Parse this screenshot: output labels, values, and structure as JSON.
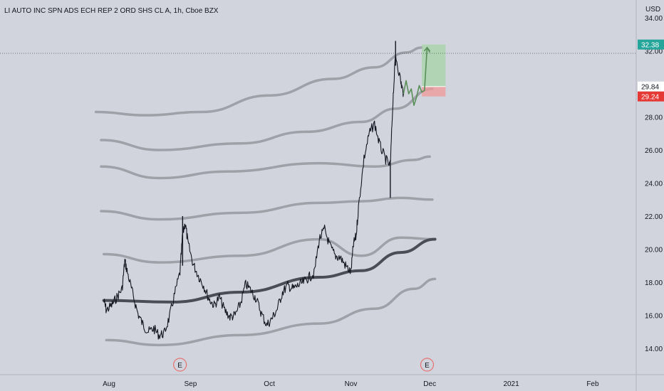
{
  "chart_data": {
    "type": "line",
    "title": "LI AUTO INC SPN ADS ECH REP 2 ORD SHS CL A, 1h, Cboe BZX",
    "currency": "USD",
    "ylim": [
      13.0,
      35.0
    ],
    "y_ticks": [
      "14.00",
      "16.00",
      "18.00",
      "20.00",
      "22.00",
      "24.00",
      "26.00",
      "28.00",
      "30.00",
      "32.00",
      "34.00"
    ],
    "x_ticks": [
      {
        "label": "Aug",
        "date": "2020-08-01"
      },
      {
        "label": "Sep",
        "date": "2020-09-01"
      },
      {
        "label": "Oct",
        "date": "2020-10-01"
      },
      {
        "label": "Nov",
        "date": "2020-11-01"
      },
      {
        "label": "Dec",
        "date": "2020-12-01"
      },
      {
        "label": "2021",
        "date": "2021-01-01"
      },
      {
        "label": "Feb",
        "date": "2021-02-01"
      }
    ],
    "price_labels": [
      {
        "text": "32.38",
        "value": 32.38,
        "color": "#26a69a"
      },
      {
        "text": "29.84",
        "value": 29.84,
        "color": "#ffffff"
      },
      {
        "text": "29.24",
        "value": 29.24,
        "color": "#e53935"
      }
    ],
    "earnings_markers": [
      {
        "label": "E",
        "date": "2020-08-28"
      },
      {
        "label": "E",
        "date": "2020-11-30"
      }
    ],
    "price_series": [
      [
        "2020-07-30",
        16.9
      ],
      [
        "2020-07-31",
        16.3
      ],
      [
        "2020-08-02",
        16.6
      ],
      [
        "2020-08-04",
        17.1
      ],
      [
        "2020-08-06",
        17.6
      ],
      [
        "2020-08-07",
        19.3
      ],
      [
        "2020-08-08",
        18.6
      ],
      [
        "2020-08-10",
        17.3
      ],
      [
        "2020-08-12",
        16.1
      ],
      [
        "2020-08-14",
        15.4
      ],
      [
        "2020-08-16",
        15.0
      ],
      [
        "2020-08-18",
        15.2
      ],
      [
        "2020-08-20",
        14.8
      ],
      [
        "2020-08-22",
        14.9
      ],
      [
        "2020-08-24",
        15.9
      ],
      [
        "2020-08-26",
        17.3
      ],
      [
        "2020-08-28",
        18.6
      ],
      [
        "2020-08-29",
        20.9
      ],
      [
        "2020-08-30",
        21.6
      ],
      [
        "2020-08-31",
        20.4
      ],
      [
        "2020-09-02",
        19.1
      ],
      [
        "2020-09-04",
        18.4
      ],
      [
        "2020-09-06",
        17.8
      ],
      [
        "2020-09-08",
        17.0
      ],
      [
        "2020-09-10",
        16.6
      ],
      [
        "2020-09-12",
        17.1
      ],
      [
        "2020-09-14",
        16.3
      ],
      [
        "2020-09-16",
        15.9
      ],
      [
        "2020-09-18",
        16.0
      ],
      [
        "2020-09-20",
        16.7
      ],
      [
        "2020-09-22",
        17.9
      ],
      [
        "2020-09-24",
        17.5
      ],
      [
        "2020-09-26",
        17.0
      ],
      [
        "2020-09-28",
        16.1
      ],
      [
        "2020-09-30",
        15.4
      ],
      [
        "2020-10-02",
        15.8
      ],
      [
        "2020-10-04",
        16.4
      ],
      [
        "2020-10-06",
        17.4
      ],
      [
        "2020-10-08",
        17.8
      ],
      [
        "2020-10-10",
        17.6
      ],
      [
        "2020-10-12",
        17.8
      ],
      [
        "2020-10-14",
        18.0
      ],
      [
        "2020-10-16",
        18.3
      ],
      [
        "2020-10-18",
        18.5
      ],
      [
        "2020-10-20",
        20.6
      ],
      [
        "2020-10-22",
        21.2
      ],
      [
        "2020-10-24",
        20.2
      ],
      [
        "2020-10-26",
        19.6
      ],
      [
        "2020-10-28",
        19.5
      ],
      [
        "2020-10-30",
        19.0
      ],
      [
        "2020-11-01",
        18.6
      ],
      [
        "2020-11-02",
        20.3
      ],
      [
        "2020-11-03",
        20.8
      ],
      [
        "2020-11-04",
        22.7
      ],
      [
        "2020-11-06",
        25.5
      ],
      [
        "2020-11-08",
        27.0
      ],
      [
        "2020-11-10",
        27.6
      ],
      [
        "2020-11-12",
        26.3
      ],
      [
        "2020-11-14",
        25.5
      ],
      [
        "2020-11-16",
        25.0
      ],
      [
        "2020-11-17",
        29.0
      ],
      [
        "2020-11-18",
        31.8
      ],
      [
        "2020-11-20",
        30.1
      ],
      [
        "2020-11-21",
        29.4
      ]
    ],
    "projection_path": [
      [
        "2020-11-21",
        29.4
      ],
      [
        "2020-11-22",
        30.2
      ],
      [
        "2020-11-23",
        29.4
      ],
      [
        "2020-11-24",
        29.7
      ],
      [
        "2020-11-25",
        28.7
      ],
      [
        "2020-11-26",
        29.2
      ],
      [
        "2020-11-27",
        29.9
      ],
      [
        "2020-11-28",
        29.5
      ],
      [
        "2020-11-29",
        29.6
      ],
      [
        "2020-11-30",
        32.2
      ],
      [
        "2020-12-01",
        31.9
      ]
    ],
    "bands": [
      {
        "name": "",
        "points": [
          [
            "2020-07-27",
            28.3
          ],
          [
            "2020-08-15",
            28.1
          ],
          [
            "2020-09-05",
            28.3
          ],
          [
            "2020-10-01",
            29.3
          ],
          [
            "2020-10-25",
            30.3
          ],
          [
            "2020-11-10",
            31.0
          ],
          [
            "2020-11-22",
            31.9
          ],
          [
            "2020-11-28",
            32.2
          ]
        ]
      },
      {
        "name": "",
        "points": [
          [
            "2020-07-29",
            26.6
          ],
          [
            "2020-08-20",
            26.0
          ],
          [
            "2020-09-20",
            26.4
          ],
          [
            "2020-10-15",
            27.1
          ],
          [
            "2020-11-05",
            27.7
          ],
          [
            "2020-11-18",
            28.5
          ],
          [
            "2020-12-02",
            29.7
          ]
        ]
      },
      {
        "name": "",
        "points": [
          [
            "2020-07-29",
            25.0
          ],
          [
            "2020-08-20",
            24.3
          ],
          [
            "2020-09-15",
            24.7
          ],
          [
            "2020-10-20",
            25.2
          ],
          [
            "2020-11-10",
            25.0
          ],
          [
            "2020-11-25",
            25.4
          ],
          [
            "2020-12-01",
            25.6
          ]
        ]
      },
      {
        "name": "",
        "points": [
          [
            "2020-07-29",
            22.3
          ],
          [
            "2020-08-20",
            21.8
          ],
          [
            "2020-09-20",
            22.2
          ],
          [
            "2020-10-20",
            22.8
          ],
          [
            "2020-11-05",
            22.9
          ],
          [
            "2020-11-20",
            23.1
          ],
          [
            "2020-12-02",
            23.0
          ]
        ]
      },
      {
        "name": "",
        "points": [
          [
            "2020-07-30",
            19.7
          ],
          [
            "2020-08-20",
            19.2
          ],
          [
            "2020-09-20",
            19.6
          ],
          [
            "2020-10-20",
            20.6
          ],
          [
            "2020-11-05",
            19.6
          ],
          [
            "2020-11-20",
            20.7
          ],
          [
            "2020-12-03",
            20.6
          ]
        ]
      },
      {
        "name": "",
        "points": [
          [
            "2020-07-30",
            16.9
          ],
          [
            "2020-08-25",
            16.8
          ],
          [
            "2020-09-20",
            17.4
          ],
          [
            "2020-10-20",
            18.3
          ],
          [
            "2020-11-05",
            18.7
          ],
          [
            "2020-11-20",
            19.8
          ],
          [
            "2020-12-03",
            20.6
          ]
        ]
      },
      {
        "name": "",
        "points": [
          [
            "2020-07-31",
            14.5
          ],
          [
            "2020-08-20",
            14.2
          ],
          [
            "2020-09-20",
            14.8
          ],
          [
            "2020-10-20",
            15.5
          ],
          [
            "2020-11-10",
            16.4
          ],
          [
            "2020-11-25",
            17.6
          ],
          [
            "2020-12-03",
            18.2
          ]
        ]
      }
    ],
    "position": {
      "start": "2020-11-28",
      "end": "2020-12-07",
      "entry": 29.84,
      "target": 32.38,
      "stop": 29.24,
      "profit_color": "#a5d6a7",
      "loss_color": "#ef9a9a"
    },
    "grid": false,
    "legend": "none"
  }
}
